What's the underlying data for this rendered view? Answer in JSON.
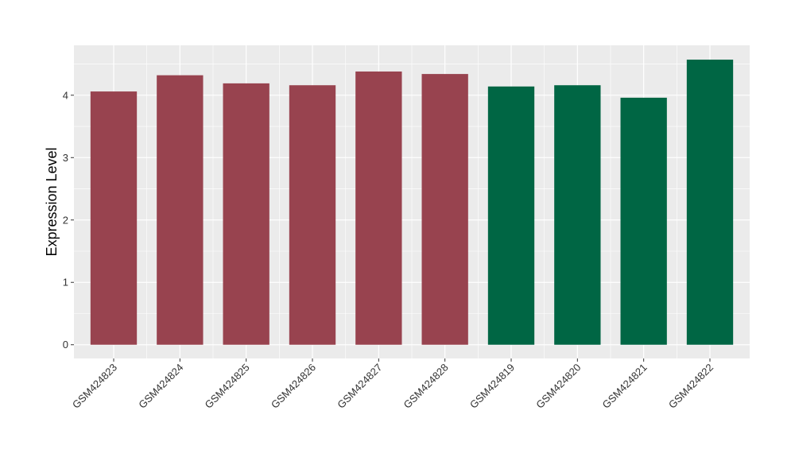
{
  "chart_data": {
    "type": "bar",
    "title": "",
    "xlabel": "",
    "ylabel": "Expression Level",
    "categories": [
      "GSM424823",
      "GSM424824",
      "GSM424825",
      "GSM424826",
      "GSM424827",
      "GSM424828",
      "GSM424819",
      "GSM424820",
      "GSM424821",
      "GSM424822"
    ],
    "values": [
      4.06,
      4.32,
      4.19,
      4.16,
      4.38,
      4.34,
      4.14,
      4.16,
      3.96,
      4.57
    ],
    "groups": [
      0,
      0,
      0,
      0,
      0,
      0,
      1,
      1,
      1,
      1
    ],
    "group_colors": [
      "#98434f",
      "#006644"
    ],
    "ylim": [
      -0.22,
      4.8
    ],
    "yticks": [
      0,
      1,
      2,
      3,
      4
    ],
    "grid": true,
    "legend": "none",
    "panel_background": "#ebebeb",
    "grid_color": "#ffffff"
  }
}
